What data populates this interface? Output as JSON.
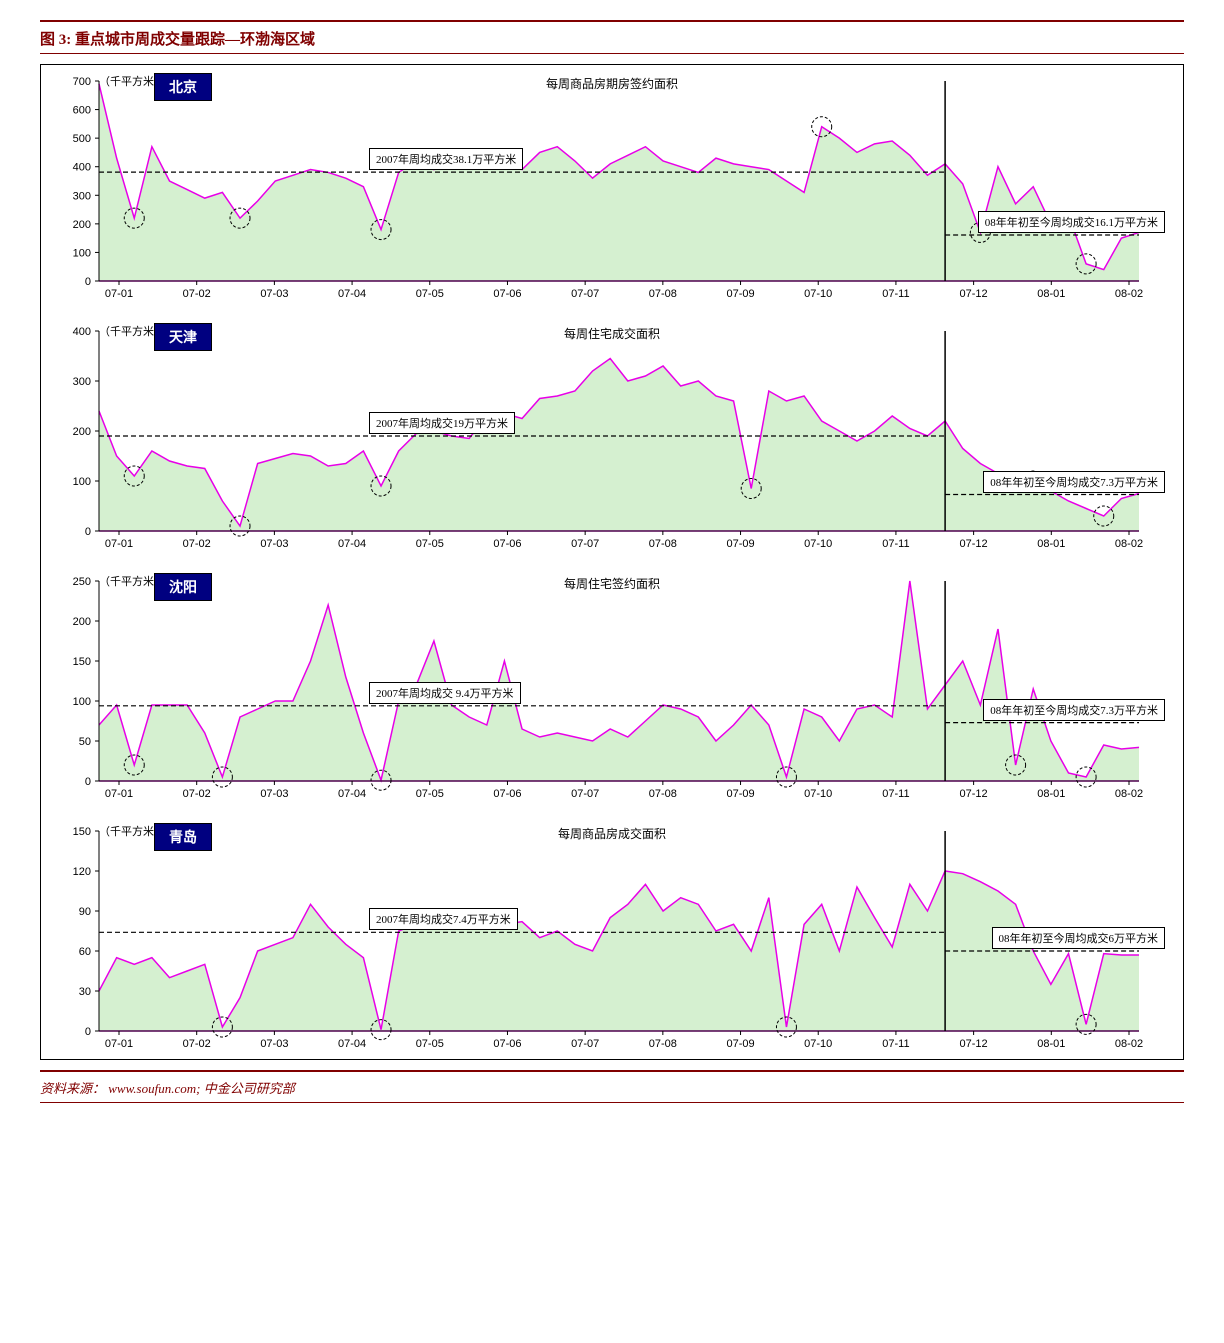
{
  "figure_title": "图 3: 重点城市周成交量跟踪—环渤海区域",
  "source_text": "资料来源： www.soufun.com; 中金公司研究部",
  "unit_label": "（千平方米）",
  "x_labels": [
    "07-01",
    "07-02",
    "07-03",
    "07-04",
    "07-05",
    "07-06",
    "07-07",
    "07-08",
    "07-09",
    "07-10",
    "07-11",
    "07-12",
    "08-01",
    "08-02"
  ],
  "divider_x_index": 48,
  "colors": {
    "line": "#e800e8",
    "fill": "#d5f0d0",
    "axis": "#000000",
    "ref_dash": "#000000",
    "divider": "#000000",
    "background": "#ffffff",
    "title": "#800000",
    "city_tag_bg": "#000080",
    "city_tag_fg": "#ffffff"
  },
  "line_width": 1.5,
  "dash_pattern": "5,3",
  "charts": [
    {
      "city": "北京",
      "subtitle": "每周商品房期房签约面积",
      "ylim": [
        0,
        700
      ],
      "ytick_step": 100,
      "avg07_label": "2007年周均成交38.1万平方米",
      "avg07_value": 381,
      "avg08_label": "08年年初至今周均成交16.1万平方米",
      "avg08_value": 161,
      "values": [
        690,
        430,
        220,
        470,
        350,
        320,
        290,
        310,
        220,
        280,
        350,
        370,
        390,
        380,
        360,
        330,
        180,
        380,
        420,
        390,
        440,
        420,
        460,
        430,
        390,
        450,
        470,
        420,
        360,
        410,
        440,
        470,
        420,
        400,
        380,
        430,
        410,
        400,
        390,
        350,
        310,
        540,
        500,
        450,
        480,
        490,
        440,
        370,
        410,
        340,
        170,
        400,
        270,
        330,
        200,
        230,
        60,
        40,
        150,
        170
      ],
      "circles": [
        2,
        8,
        16,
        41,
        50,
        56
      ]
    },
    {
      "city": "天津",
      "subtitle": "每周住宅成交面积",
      "ylim": [
        0,
        400
      ],
      "ytick_step": 100,
      "avg07_label": "2007年周均成交19万平方米",
      "avg07_value": 190,
      "avg08_label": "08年年初至今周均成交7.3万平方米",
      "avg08_value": 73,
      "values": [
        240,
        150,
        110,
        160,
        140,
        130,
        125,
        60,
        10,
        135,
        145,
        155,
        150,
        130,
        135,
        160,
        90,
        160,
        195,
        200,
        190,
        185,
        230,
        235,
        225,
        265,
        270,
        280,
        320,
        345,
        300,
        310,
        330,
        290,
        300,
        270,
        260,
        85,
        280,
        260,
        270,
        220,
        200,
        180,
        200,
        230,
        205,
        190,
        220,
        165,
        135,
        115,
        95,
        100,
        80,
        60,
        45,
        30,
        65,
        75
      ],
      "circles": [
        2,
        8,
        16,
        37,
        53,
        57
      ]
    },
    {
      "city": "沈阳",
      "subtitle": "每周住宅签约面积",
      "ylim": [
        0,
        250
      ],
      "ytick_step": 50,
      "avg07_label": "2007年周均成交 9.4万平方米",
      "avg07_value": 94,
      "avg08_label": "08年年初至今周均成交7.3万平方米",
      "avg08_value": 73,
      "values": [
        70,
        95,
        20,
        95,
        95,
        95,
        60,
        5,
        80,
        90,
        100,
        100,
        150,
        220,
        130,
        60,
        1,
        100,
        120,
        175,
        95,
        80,
        70,
        150,
        65,
        55,
        60,
        55,
        50,
        65,
        55,
        75,
        95,
        90,
        80,
        50,
        70,
        95,
        70,
        5,
        90,
        80,
        50,
        90,
        95,
        80,
        250,
        90,
        120,
        150,
        95,
        190,
        20,
        115,
        50,
        10,
        5,
        45,
        40,
        42
      ],
      "circles": [
        2,
        7,
        16,
        39,
        52,
        56
      ]
    },
    {
      "city": "青岛",
      "subtitle": "每周商品房成交面积",
      "ylim": [
        0,
        150
      ],
      "ytick_step": 30,
      "avg07_label": "2007年周均成交7.4万平方米",
      "avg07_value": 74,
      "avg08_label": "08年年初至今周均成交6万平方米",
      "avg08_value": 60,
      "values": [
        30,
        55,
        50,
        55,
        40,
        45,
        50,
        3,
        25,
        60,
        65,
        70,
        95,
        78,
        65,
        55,
        1,
        75,
        80,
        85,
        88,
        82,
        78,
        80,
        82,
        70,
        75,
        65,
        60,
        85,
        95,
        110,
        90,
        100,
        95,
        75,
        80,
        60,
        100,
        3,
        80,
        95,
        60,
        108,
        85,
        63,
        110,
        90,
        120,
        118,
        112,
        105,
        95,
        60,
        35,
        58,
        5,
        58,
        57,
        57
      ],
      "circles": [
        7,
        16,
        39,
        56
      ]
    }
  ]
}
